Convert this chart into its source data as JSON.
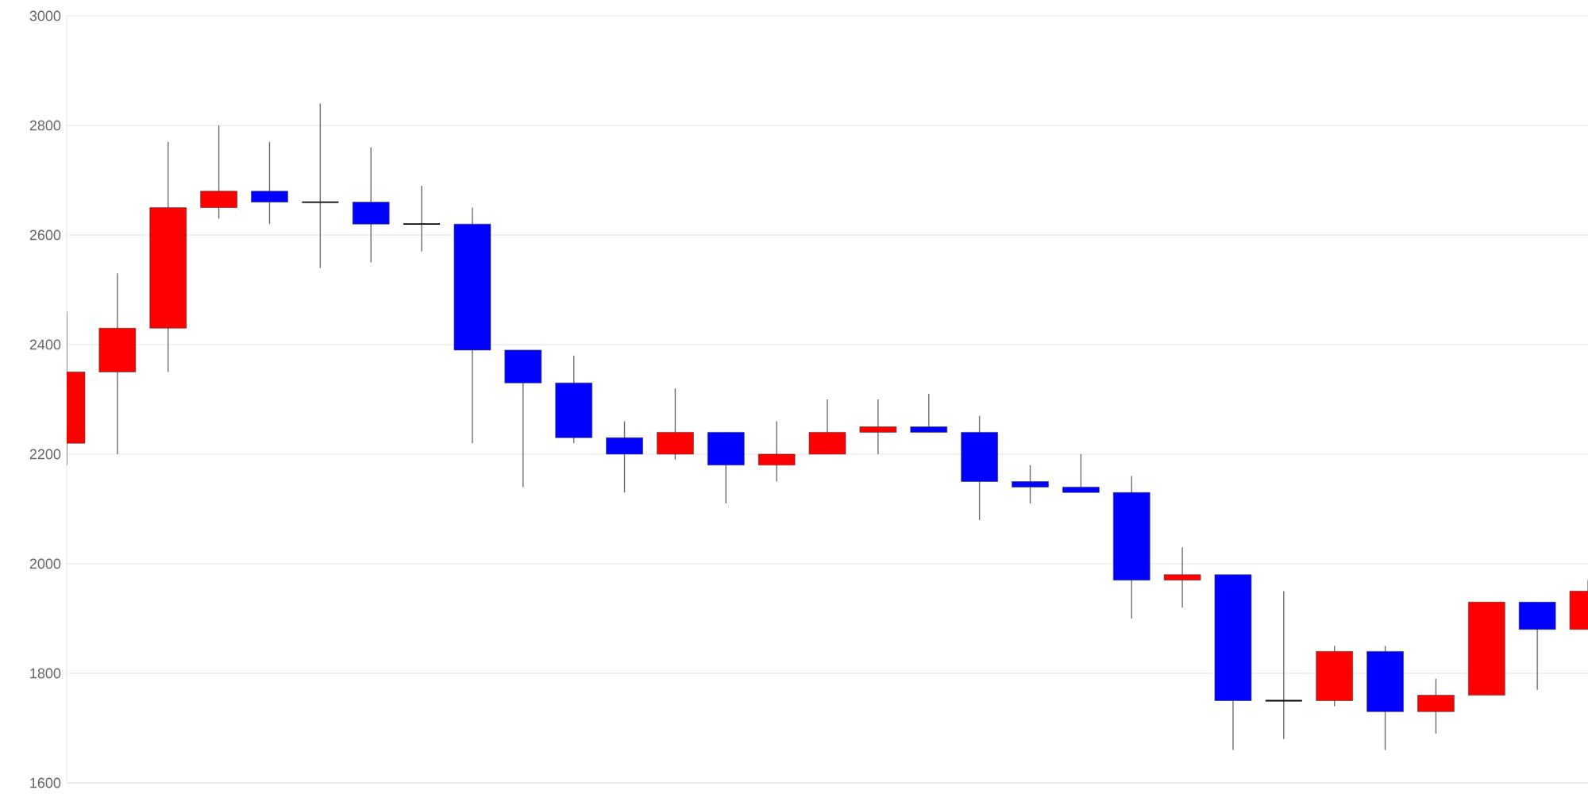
{
  "chart_data": {
    "type": "candlestick",
    "categories": [
      null,
      null,
      null,
      null,
      null,
      null,
      null,
      null,
      null,
      null,
      null,
      null,
      null,
      null,
      null,
      null,
      null,
      null,
      null,
      null,
      null,
      null,
      null,
      null,
      null,
      null,
      null,
      null,
      null,
      null,
      null
    ],
    "ohlc": [
      [
        2220,
        2460,
        2180,
        2350
      ],
      [
        2350,
        2530,
        2200,
        2430
      ],
      [
        2430,
        2770,
        2350,
        2650
      ],
      [
        2650,
        2800,
        2630,
        2680
      ],
      [
        2680,
        2770,
        2620,
        2660
      ],
      [
        2660,
        2840,
        2540,
        2660
      ],
      [
        2660,
        2760,
        2550,
        2620
      ],
      [
        2620,
        2690,
        2570,
        2620
      ],
      [
        2620,
        2650,
        2220,
        2390
      ],
      [
        2390,
        2390,
        2140,
        2330
      ],
      [
        2330,
        2380,
        2220,
        2230
      ],
      [
        2230,
        2260,
        2130,
        2200
      ],
      [
        2200,
        2320,
        2190,
        2240
      ],
      [
        2240,
        2240,
        2110,
        2180
      ],
      [
        2180,
        2260,
        2150,
        2200
      ],
      [
        2200,
        2300,
        2200,
        2240
      ],
      [
        2240,
        2300,
        2200,
        2250
      ],
      [
        2250,
        2310,
        2240,
        2240
      ],
      [
        2240,
        2270,
        2080,
        2150
      ],
      [
        2150,
        2180,
        2110,
        2140
      ],
      [
        2140,
        2200,
        2130,
        2130
      ],
      [
        2130,
        2160,
        1900,
        1970
      ],
      [
        1970,
        2030,
        1920,
        1980
      ],
      [
        1980,
        1980,
        1660,
        1750
      ],
      [
        1750,
        1950,
        1680,
        1750
      ],
      [
        1750,
        1850,
        1740,
        1840
      ],
      [
        1840,
        1850,
        1660,
        1730
      ],
      [
        1730,
        1790,
        1690,
        1760
      ],
      [
        1760,
        1930,
        1760,
        1930
      ],
      [
        1930,
        1930,
        1770,
        1880
      ],
      [
        1880,
        1970,
        1880,
        1950
      ]
    ],
    "colors": [
      "#ff0000",
      "#ff0000",
      "#ff0000",
      "#ff0000",
      "#0000ff",
      "#000000",
      "#0000ff",
      "#000000",
      "#0000ff",
      "#0000ff",
      "#0000ff",
      "#0000ff",
      "#ff0000",
      "#0000ff",
      "#ff0000",
      "#ff0000",
      "#ff0000",
      "#0000ff",
      "#0000ff",
      "#0000ff",
      "#0000ff",
      "#0000ff",
      "#ff0000",
      "#0000ff",
      "#000000",
      "#ff0000",
      "#0000ff",
      "#ff0000",
      "#ff0000",
      "#0000ff",
      "#ff0000"
    ],
    "ylim": [
      1600,
      3000
    ],
    "yticks": [
      1600,
      1800,
      2000,
      2200,
      2400,
      2600,
      2800,
      3000
    ],
    "grid": "y",
    "tick_labels": "y"
  }
}
